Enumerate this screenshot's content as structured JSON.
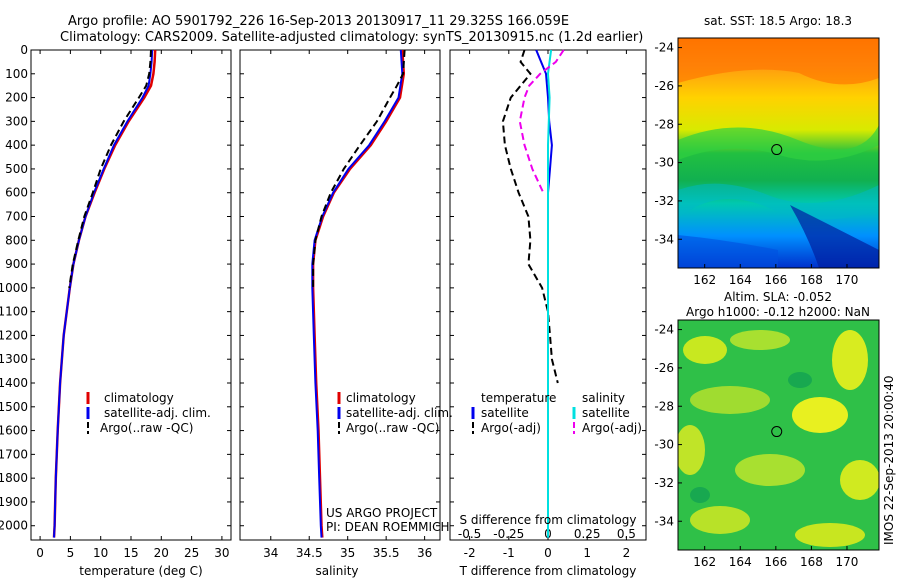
{
  "title_line1": "Argo profile: AO 5901792_226 16-Sep-2013 20130917_11 29.325S 166.059E",
  "title_line2": "Climatology: CARS2009. Satellite-adjusted climatology: synTS_20130915.nc (1.2d earlier)",
  "credit": {
    "line1": "US ARGO PROJECT",
    "line2": "PI: DEAN ROEMMICH"
  },
  "side_label": "IMOS 22-Sep-2013 20:00:40",
  "depth_ticks": [
    0,
    100,
    200,
    300,
    400,
    500,
    600,
    700,
    800,
    900,
    1000,
    1100,
    1200,
    1300,
    1400,
    1500,
    1600,
    1700,
    1800,
    1900,
    2000
  ],
  "colors": {
    "climatology": "#e00000",
    "satellite": "#0000ee",
    "argo": "#000000",
    "sal_satellite": "#00e0e0",
    "sal_argo": "#ee00ee"
  },
  "chart_data": [
    {
      "type": "line",
      "xlabel": "temperature (deg C)",
      "xlim": [
        -1.5,
        31.5
      ],
      "ylim": [
        2060,
        0
      ],
      "xticks": [
        0,
        5,
        10,
        15,
        20,
        25,
        30
      ],
      "legend": [
        "climatology",
        "satellite-adj. clim.",
        "Argo(..raw -QC)"
      ],
      "series": [
        {
          "name": "climatology",
          "depth": [
            0,
            50,
            100,
            150,
            200,
            300,
            400,
            500,
            600,
            700,
            800,
            900,
            1000,
            1200,
            1400,
            1600,
            1800,
            2000,
            2050
          ],
          "values": [
            19.0,
            18.9,
            18.7,
            18.3,
            17.2,
            14.6,
            12.4,
            10.6,
            9.0,
            7.5,
            6.4,
            5.5,
            4.9,
            3.9,
            3.3,
            2.9,
            2.6,
            2.4,
            2.3
          ]
        },
        {
          "name": "satellite-adj. clim.",
          "depth": [
            0,
            50,
            100,
            150,
            200,
            300,
            400,
            500,
            600,
            700,
            800,
            900,
            1000,
            1200,
            1400,
            1600,
            1800,
            2000,
            2050
          ],
          "values": [
            18.5,
            18.4,
            18.2,
            17.9,
            16.9,
            14.4,
            12.2,
            10.5,
            8.9,
            7.5,
            6.4,
            5.5,
            4.9,
            3.9,
            3.3,
            2.9,
            2.6,
            2.4,
            2.3
          ]
        },
        {
          "name": "Argo(..raw -QC)",
          "depth": [
            0,
            50,
            100,
            150,
            200,
            300,
            400,
            500,
            600,
            700,
            800,
            900,
            1000
          ],
          "values": [
            18.3,
            18.2,
            18.0,
            17.5,
            16.3,
            13.8,
            11.7,
            10.0,
            8.7,
            7.3,
            6.3,
            5.4,
            4.8
          ]
        }
      ]
    },
    {
      "type": "line",
      "xlabel": "salinity",
      "xlim": [
        33.6,
        36.2
      ],
      "ylim": [
        2060,
        0
      ],
      "xticks": [
        34,
        34.5,
        35,
        35.5,
        36
      ],
      "xticklabels": [
        "34",
        "34.5",
        "35",
        "35.5",
        "36"
      ],
      "legend": [
        "climatology",
        "satellite-adj. clim.",
        "Argo(..raw -QC)"
      ],
      "series": [
        {
          "name": "climatology",
          "depth": [
            0,
            100,
            200,
            300,
            400,
            500,
            600,
            700,
            800,
            900,
            1000,
            1200,
            1400,
            1600,
            1800,
            2000,
            2050
          ],
          "values": [
            35.71,
            35.73,
            35.68,
            35.5,
            35.3,
            35.03,
            34.82,
            34.68,
            34.58,
            34.55,
            34.55,
            34.57,
            34.59,
            34.62,
            34.64,
            34.66,
            34.67
          ]
        },
        {
          "name": "satellite-adj. clim.",
          "depth": [
            0,
            100,
            200,
            300,
            400,
            500,
            600,
            700,
            800,
            900,
            1000,
            1200,
            1400,
            1600,
            1800,
            2000,
            2050
          ],
          "values": [
            35.69,
            35.71,
            35.66,
            35.48,
            35.28,
            35.01,
            34.81,
            34.67,
            34.57,
            34.54,
            34.54,
            34.56,
            34.58,
            34.61,
            34.63,
            34.65,
            34.66
          ]
        },
        {
          "name": "Argo(..raw -QC)",
          "depth": [
            0,
            100,
            150,
            200,
            300,
            400,
            500,
            600,
            700,
            800,
            900,
            1000
          ],
          "values": [
            35.74,
            35.72,
            35.64,
            35.55,
            35.38,
            35.16,
            34.95,
            34.78,
            34.66,
            34.58,
            34.55,
            34.55
          ]
        }
      ]
    },
    {
      "type": "line",
      "xlabel": "T difference from climatology",
      "xlabel2": "S difference from climatology",
      "xlim": [
        -2.5,
        2.5
      ],
      "ylim": [
        2060,
        0
      ],
      "xticks": [
        -2,
        -1,
        0,
        1,
        2
      ],
      "xticklabels": [
        "-2",
        "-1",
        "0",
        "1",
        "2"
      ],
      "sticks": [
        -0.5,
        -0.25,
        0,
        0.25,
        0.5
      ],
      "sticklabels": [
        "-0.5",
        "-0.25",
        "0",
        "0.25",
        "0.5"
      ],
      "legend": {
        "temperature": "temperature",
        "salinity": "salinity",
        "satellite": "satellite",
        "argo": "Argo(-adj)"
      },
      "series": [
        {
          "name": "T satellite",
          "depth": [
            0,
            100,
            200,
            300,
            400,
            500,
            600,
            800,
            1000,
            1500,
            2050
          ],
          "values": [
            -0.3,
            -0.05,
            0.0,
            0.03,
            0.1,
            0.05,
            0.0,
            0.0,
            0.0,
            0.0,
            0.0
          ]
        },
        {
          "name": "T Argo(-adj)",
          "depth": [
            0,
            50,
            100,
            200,
            300,
            400,
            500,
            600,
            700,
            800,
            900,
            1000,
            1100,
            1200,
            1300,
            1400
          ],
          "values": [
            -0.6,
            -0.7,
            -0.45,
            -0.95,
            -1.15,
            -1.1,
            -0.95,
            -0.75,
            -0.5,
            -0.45,
            -0.5,
            -0.15,
            0.0,
            0.05,
            0.1,
            0.25
          ]
        },
        {
          "name": "S satellite",
          "depth": [
            0,
            100,
            200,
            400,
            600,
            800,
            1000,
            1500,
            2050
          ],
          "values": [
            0.02,
            0.0,
            0.01,
            0.0,
            0.0,
            0.0,
            0.0,
            0.0,
            0.0
          ]
        },
        {
          "name": "S Argo(-adj)",
          "depth": [
            0,
            50,
            100,
            150,
            200,
            300,
            400,
            500,
            600
          ],
          "values": [
            0.1,
            0.05,
            -0.05,
            -0.12,
            -0.15,
            -0.18,
            -0.15,
            -0.1,
            -0.03
          ]
        }
      ]
    },
    {
      "type": "heatmap",
      "title": "sat. SST: 18.5 Argo: 18.3",
      "xlim": [
        160.5,
        171.8
      ],
      "ylim": [
        -35.5,
        -23.5
      ],
      "xticks": [
        162,
        164,
        166,
        168,
        170
      ],
      "yticks": [
        -24,
        -26,
        -28,
        -30,
        -32,
        -34
      ],
      "marker": [
        166.05,
        -29.32
      ]
    },
    {
      "type": "heatmap",
      "title_line1": "Altim. SLA: -0.052",
      "title_line2": "Argo h1000: -0.12 h2000: NaN",
      "xlim": [
        160.5,
        171.8
      ],
      "ylim": [
        -35.5,
        -23.5
      ],
      "xticks": [
        162,
        164,
        166,
        168,
        170
      ],
      "yticks": [
        -24,
        -26,
        -28,
        -30,
        -32,
        -34
      ],
      "marker": [
        166.05,
        -29.32
      ]
    }
  ]
}
